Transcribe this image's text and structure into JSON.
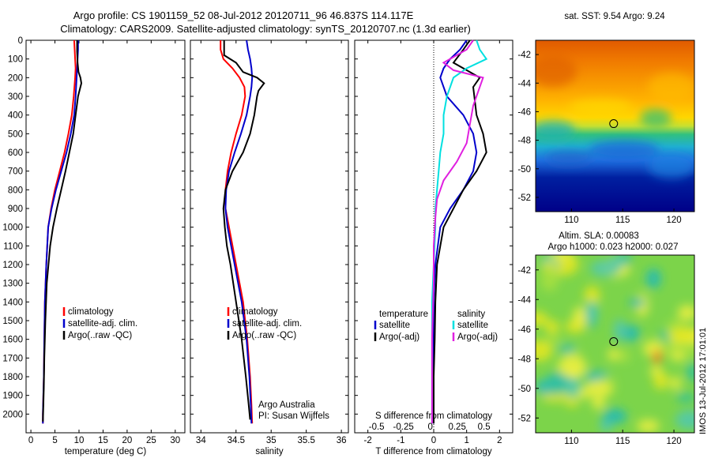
{
  "header": {
    "title_line1": "Argo profile: CS 1901159_52 08-Jul-2012 20120711_96 46.837S 114.117E",
    "title_line2": "Climatology: CARS2009. Satellite-adjusted climatology: synTS_20120707.nc (1.3d earlier)"
  },
  "side_label": "IMOS 13-Jul-2012 17:01:01",
  "colors": {
    "climatology": "#ff0000",
    "satellite": "#0000cc",
    "argo": "#000000",
    "sat_salinity": "#00e0e0",
    "argo_salinity": "#e020e0"
  },
  "chart_data": [
    {
      "type": "line",
      "id": "temperature",
      "xlabel": "temperature (deg C)",
      "xlim": [
        -1,
        32
      ],
      "ylim": [
        2100,
        0
      ],
      "xticks": [
        0,
        5,
        10,
        15,
        20,
        25,
        30
      ],
      "yticks": [
        0,
        100,
        200,
        300,
        400,
        500,
        600,
        700,
        800,
        900,
        1000,
        1100,
        1200,
        1300,
        1400,
        1500,
        1600,
        1700,
        1800,
        1900,
        2000
      ],
      "legend": [
        "climatology",
        "satellite-adj. clim.",
        "Argo(..raw -QC)"
      ],
      "series": [
        {
          "name": "climatology",
          "color": "#ff0000",
          "x": [
            9.0,
            9.1,
            9.2,
            9.3,
            9.2,
            8.9,
            8.5,
            7.8,
            7.0,
            6.0,
            5.0,
            4.2,
            3.6,
            3.2,
            2.9,
            2.8,
            2.7,
            2.6,
            2.5,
            2.5
          ],
          "y": [
            0,
            50,
            100,
            150,
            200,
            300,
            400,
            500,
            600,
            700,
            800,
            900,
            1000,
            1200,
            1400,
            1600,
            1800,
            1900,
            2000,
            2050
          ]
        },
        {
          "name": "satellite-adj. clim.",
          "color": "#0000cc",
          "x": [
            9.8,
            9.8,
            9.7,
            9.6,
            9.5,
            9.3,
            9.0,
            8.3,
            7.4,
            6.3,
            5.2,
            4.3,
            3.6,
            3.2,
            2.9,
            2.8,
            2.7,
            2.6,
            2.5,
            2.5
          ],
          "y": [
            0,
            50,
            100,
            150,
            200,
            300,
            400,
            500,
            600,
            700,
            800,
            900,
            1000,
            1200,
            1400,
            1600,
            1800,
            1900,
            2000,
            2050
          ]
        },
        {
          "name": "Argo(..raw -QC)",
          "color": "#000000",
          "x": [
            9.6,
            9.6,
            9.7,
            9.9,
            10.3,
            10.5,
            9.8,
            9.3,
            8.8,
            8.0,
            7.2,
            6.3,
            5.4,
            4.6,
            4.0,
            3.3,
            3.0,
            2.8,
            2.7,
            2.6,
            2.5
          ],
          "y": [
            0,
            60,
            120,
            170,
            200,
            230,
            300,
            400,
            500,
            600,
            700,
            800,
            900,
            1000,
            1100,
            1300,
            1500,
            1700,
            1850,
            1950,
            2040
          ]
        }
      ]
    },
    {
      "type": "line",
      "id": "salinity",
      "xlabel": "salinity",
      "xlim": [
        33.85,
        36.1
      ],
      "ylim": [
        2100,
        0
      ],
      "xticks": [
        34,
        34.5,
        35,
        35.5,
        36
      ],
      "legend": [
        "climatology",
        "satellite-adj. clim.",
        "Argo(..raw -QC)"
      ],
      "annotation": [
        "Argo Australia",
        "PI: Susan Wijffels"
      ],
      "series": [
        {
          "name": "climatology",
          "color": "#ff0000",
          "x": [
            34.28,
            34.28,
            34.32,
            34.45,
            34.55,
            34.62,
            34.63,
            34.58,
            34.5,
            34.43,
            34.38,
            34.35,
            34.35,
            34.4,
            34.5,
            34.6,
            34.66,
            34.7,
            34.72,
            34.73
          ],
          "y": [
            0,
            50,
            100,
            150,
            200,
            250,
            300,
            400,
            500,
            600,
            700,
            800,
            900,
            1000,
            1200,
            1400,
            1600,
            1800,
            1950,
            2050
          ]
        },
        {
          "name": "satellite-adj. clim.",
          "color": "#0000cc",
          "x": [
            34.65,
            34.67,
            34.7,
            34.72,
            34.73,
            34.72,
            34.7,
            34.65,
            34.57,
            34.48,
            34.4,
            34.36,
            34.35,
            34.38,
            34.48,
            34.58,
            34.65,
            34.69,
            34.71,
            34.72
          ],
          "y": [
            0,
            50,
            100,
            150,
            200,
            250,
            300,
            400,
            500,
            600,
            700,
            800,
            900,
            1000,
            1200,
            1400,
            1600,
            1800,
            1950,
            2050
          ]
        },
        {
          "name": "Argo(..raw -QC)",
          "color": "#000000",
          "x": [
            34.33,
            34.33,
            34.5,
            34.6,
            34.8,
            34.9,
            34.82,
            34.8,
            34.76,
            34.7,
            34.6,
            34.45,
            34.35,
            34.32,
            34.34,
            34.37,
            34.42,
            34.5,
            34.58,
            34.64,
            34.68,
            34.7
          ],
          "y": [
            0,
            80,
            120,
            170,
            200,
            230,
            270,
            300,
            400,
            500,
            600,
            700,
            800,
            900,
            1000,
            1100,
            1200,
            1400,
            1600,
            1800,
            1950,
            2030
          ]
        }
      ]
    },
    {
      "type": "line",
      "id": "difference",
      "xlabel": "T difference from climatology",
      "xlabel2": "S difference from climatology",
      "xlim": [
        -2.4,
        2.4
      ],
      "ylim": [
        2100,
        0
      ],
      "xticks": [
        -2,
        -1,
        0,
        1,
        2
      ],
      "xticks2": [
        -0.5,
        -0.25,
        0,
        0.25,
        0.5
      ],
      "legend_groups": [
        {
          "title": "temperature",
          "entries": [
            "satellite",
            "Argo(-adj)"
          ]
        },
        {
          "title": "salinity",
          "entries": [
            "satellite",
            "Argo(-adj)"
          ]
        }
      ],
      "series": [
        {
          "name": "temperature satellite",
          "color": "#0000cc",
          "x": [
            1.0,
            0.8,
            0.5,
            0.3,
            0.2,
            0.4,
            0.9,
            1.2,
            1.3,
            1.2,
            0.9,
            0.5,
            0.2,
            0.05,
            0,
            0,
            0,
            0
          ],
          "y": [
            0,
            50,
            100,
            150,
            200,
            300,
            400,
            500,
            600,
            700,
            800,
            900,
            1000,
            1200,
            1400,
            1600,
            1800,
            2050
          ]
        },
        {
          "name": "temperature Argo(-adj)",
          "color": "#000000",
          "x": [
            1.1,
            0.9,
            0.6,
            1.0,
            1.4,
            1.2,
            1.3,
            1.5,
            1.6,
            1.3,
            0.9,
            0.6,
            0.3,
            0.1,
            0.05,
            0.03,
            0,
            0
          ],
          "y": [
            0,
            50,
            120,
            160,
            200,
            250,
            400,
            500,
            600,
            700,
            800,
            900,
            1000,
            1200,
            1400,
            1600,
            1800,
            2050
          ]
        },
        {
          "name": "salinity satellite",
          "color": "#00e0e0",
          "x": [
            1.3,
            1.4,
            1.6,
            1.0,
            0.6,
            0.4,
            0.3,
            0.3,
            0.2,
            0.15,
            0.1,
            0.05,
            0.05,
            0,
            -0.05,
            -0.05,
            -0.05,
            -0.05
          ],
          "y": [
            0,
            50,
            100,
            150,
            200,
            300,
            400,
            500,
            600,
            700,
            800,
            900,
            1000,
            1200,
            1400,
            1600,
            1800,
            2050
          ]
        },
        {
          "name": "salinity Argo(-adj)",
          "color": "#e020e0",
          "x": [
            1.2,
            1.0,
            0.3,
            0.6,
            1.5,
            1.4,
            1.2,
            1.1,
            1.0,
            0.7,
            0.3,
            0.1,
            0.05,
            0,
            0,
            -0.05,
            -0.05,
            -0.05
          ],
          "y": [
            0,
            50,
            120,
            160,
            200,
            250,
            350,
            450,
            550,
            650,
            750,
            850,
            950,
            1100,
            1300,
            1600,
            1800,
            2050
          ]
        }
      ]
    },
    {
      "type": "heatmap",
      "id": "sst-map",
      "title": "sat. SST: 9.54  Argo: 9.24",
      "xlim": [
        106.5,
        122
      ],
      "ylim": [
        -53,
        -41
      ],
      "xticks": [
        110,
        115,
        120
      ],
      "yticks": [
        -42,
        -44,
        -46,
        -48,
        -50,
        -52
      ],
      "marker": {
        "lon": 114.117,
        "lat": -46.837
      }
    },
    {
      "type": "heatmap",
      "id": "sla-map",
      "title_line1": "Altim. SLA: 0.00083",
      "title_line2": "Argo h1000: 0.023 h2000: 0.027",
      "xlim": [
        106.5,
        122
      ],
      "ylim": [
        -53,
        -41
      ],
      "xticks": [
        110,
        115,
        120
      ],
      "yticks": [
        -42,
        -44,
        -46,
        -48,
        -50,
        -52
      ],
      "marker": {
        "lon": 114.117,
        "lat": -46.837
      }
    }
  ]
}
